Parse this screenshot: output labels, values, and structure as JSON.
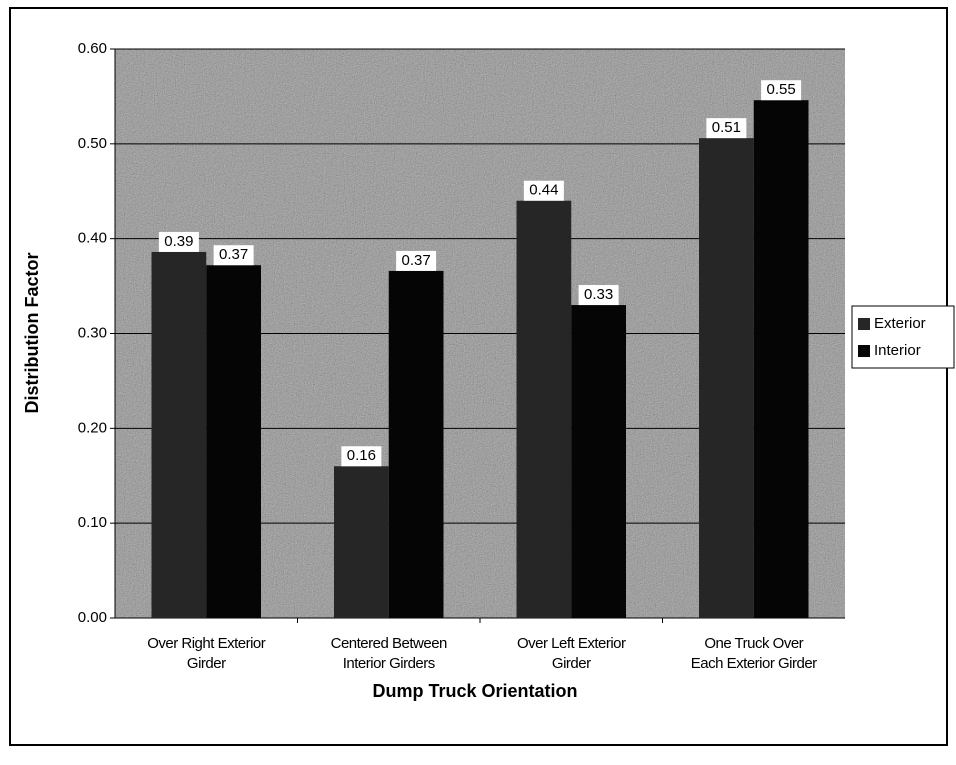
{
  "chart_data": {
    "type": "bar",
    "x_label": "Dump Truck Orientation",
    "y_label": "Distribution Factor",
    "categories": [
      [
        "Over Right Exterior",
        "Girder"
      ],
      [
        "Centered Between",
        "Interior Girders"
      ],
      [
        "Over Left Exterior",
        "Girder"
      ],
      [
        "One Truck Over",
        "Each Exterior Girder"
      ]
    ],
    "series": [
      {
        "name": "Exterior",
        "color": "#262626",
        "values": [
          0.386,
          0.16,
          0.44,
          0.506
        ],
        "value_labels": [
          "0.39",
          "0.16",
          "0.44",
          "0.51"
        ]
      },
      {
        "name": "Interior",
        "color": "#050505",
        "values": [
          0.372,
          0.366,
          0.33,
          0.546
        ],
        "value_labels": [
          "0.37",
          "0.37",
          "0.33",
          "0.55"
        ]
      }
    ],
    "ylim": [
      0,
      0.6
    ],
    "yticks": [
      {
        "value": 0,
        "label": "0.00"
      },
      {
        "value": 0.1,
        "label": "0.10"
      },
      {
        "value": 0.2,
        "label": "0.20"
      },
      {
        "value": 0.3,
        "label": "0.30"
      },
      {
        "value": 0.4,
        "label": "0.40"
      },
      {
        "value": 0.5,
        "label": "0.50"
      },
      {
        "value": 0.6,
        "label": "0.60"
      }
    ],
    "grid": true,
    "legend": "right"
  }
}
